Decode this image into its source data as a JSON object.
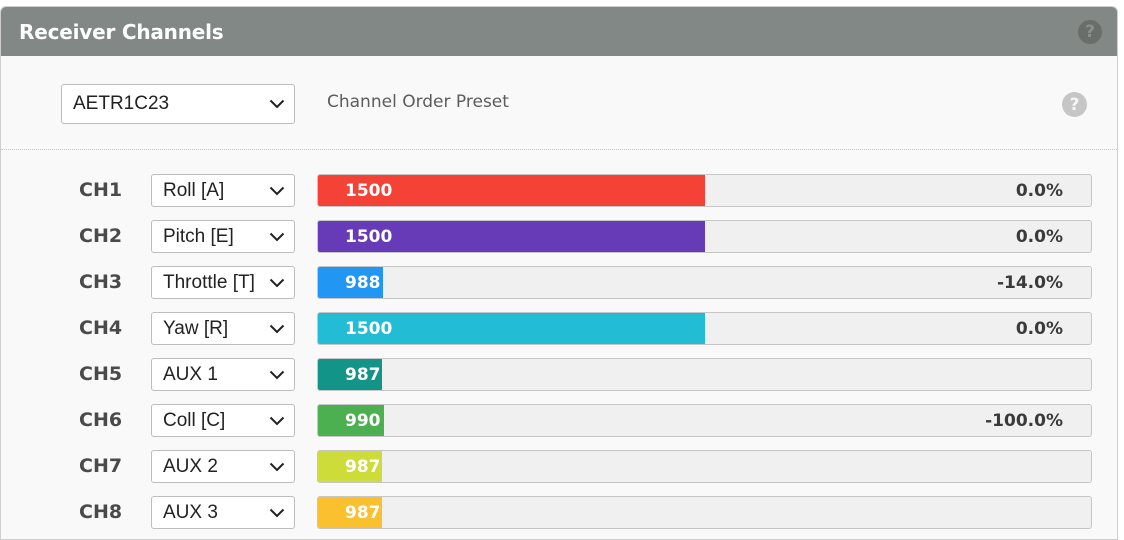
{
  "panel": {
    "title": "Receiver Channels",
    "help_icon": "question-circle-icon"
  },
  "preset": {
    "selected": "AETR1C23",
    "label": "Channel Order Preset",
    "help_icon": "question-circle-icon"
  },
  "range": {
    "min": 885,
    "max": 2115
  },
  "channels": [
    {
      "label": "CH1",
      "function": "Roll [A]",
      "value": 1500,
      "pct": "0.0%",
      "color": "#f44336"
    },
    {
      "label": "CH2",
      "function": "Pitch [E]",
      "value": 1500,
      "pct": "0.0%",
      "color": "#673ab7"
    },
    {
      "label": "CH3",
      "function": "Throttle [T]",
      "value": 988,
      "pct": "-14.0%",
      "color": "#2196f3"
    },
    {
      "label": "CH4",
      "function": "Yaw [R]",
      "value": 1500,
      "pct": "0.0%",
      "color": "#22bcd4"
    },
    {
      "label": "CH5",
      "function": "AUX 1",
      "value": 987,
      "pct": "",
      "color": "#139488"
    },
    {
      "label": "CH6",
      "function": "Coll [C]",
      "value": 990,
      "pct": "-100.0%",
      "color": "#4caf50"
    },
    {
      "label": "CH7",
      "function": "AUX 2",
      "value": 987,
      "pct": "",
      "color": "#cddc39"
    },
    {
      "label": "CH8",
      "function": "AUX 3",
      "value": 987,
      "pct": "",
      "color": "#fbc02d"
    }
  ]
}
